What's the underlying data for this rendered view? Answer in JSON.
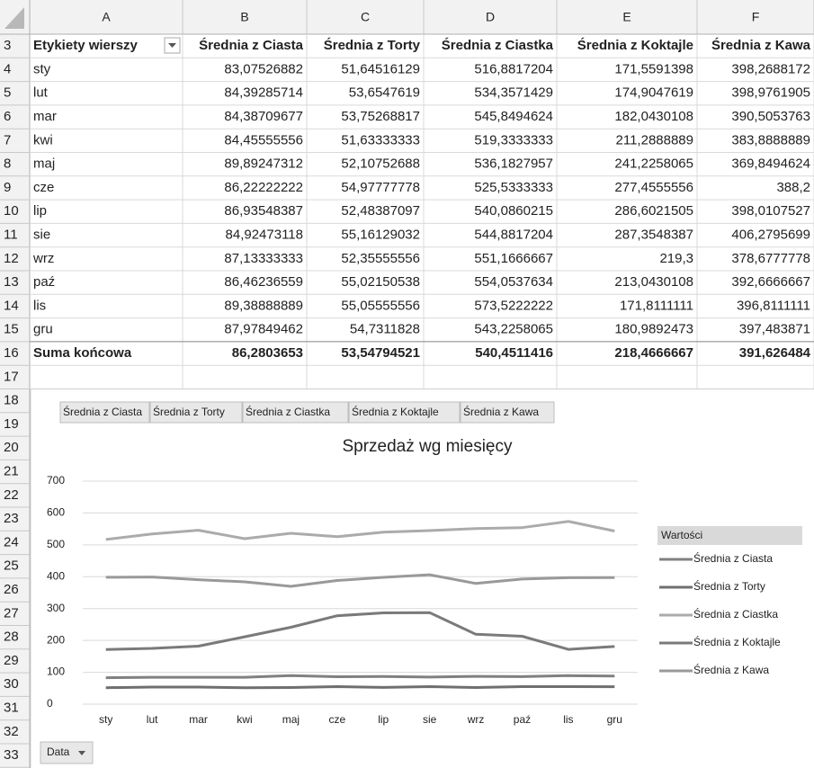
{
  "spreadsheet": {
    "columns": [
      "A",
      "B",
      "C",
      "D",
      "E",
      "F"
    ],
    "row_numbers": [
      3,
      4,
      5,
      6,
      7,
      8,
      9,
      10,
      11,
      12,
      13,
      14,
      15,
      16,
      17,
      18,
      19,
      20,
      21,
      22,
      23,
      24,
      25,
      26,
      27,
      28,
      29,
      30,
      31,
      32,
      33
    ],
    "table": {
      "row_label_header": "Etykiety wierszy",
      "rows": [
        [
          "83,07526882",
          "51,64516129",
          "516,8817204",
          "171,5591398",
          "398,2688172"
        ],
        [
          "84,39285714",
          "53,6547619",
          "534,3571429",
          "174,9047619",
          "398,9761905"
        ],
        [
          "84,38709677",
          "53,75268817",
          "545,8494624",
          "182,0430108",
          "390,5053763"
        ],
        [
          "84,45555556",
          "51,63333333",
          "519,3333333",
          "211,2888889",
          "383,8888889"
        ],
        [
          "89,89247312",
          "52,10752688",
          "536,1827957",
          "241,2258065",
          "369,8494624"
        ],
        [
          "86,22222222",
          "54,97777778",
          "525,5333333",
          "277,4555556",
          "388,2"
        ],
        [
          "86,93548387",
          "52,48387097",
          "540,0860215",
          "286,6021505",
          "398,0107527"
        ],
        [
          "84,92473118",
          "55,16129032",
          "544,8817204",
          "287,3548387",
          "406,2795699"
        ],
        [
          "87,13333333",
          "52,35555556",
          "551,1666667",
          "219,3",
          "378,6777778"
        ],
        [
          "86,46236559",
          "55,02150538",
          "554,0537634",
          "213,0430108",
          "392,6666667"
        ],
        [
          "89,38888889",
          "55,05555556",
          "573,5222222",
          "171,8111111",
          "396,8111111"
        ],
        [
          "87,97849462",
          "54,7311828",
          "543,2258065",
          "180,9892473",
          "397,483871"
        ]
      ],
      "total_label": "Suma końcowa",
      "total": [
        "86,2803653",
        "53,54794521",
        "540,4511416",
        "218,4666667",
        "391,626484"
      ]
    }
  },
  "chart_data": {
    "type": "line",
    "title": "Sprzedaż wg miesięcy",
    "categories": [
      "sty",
      "lut",
      "mar",
      "kwi",
      "maj",
      "cze",
      "lip",
      "sie",
      "wrz",
      "paź",
      "lis",
      "gru"
    ],
    "series": [
      {
        "name": "Średnia z Ciasta",
        "color": "#808080",
        "values": [
          83.07526882,
          84.39285714,
          84.38709677,
          84.45555556,
          89.89247312,
          86.22222222,
          86.93548387,
          84.92473118,
          87.13333333,
          86.46236559,
          89.38888889,
          87.97849462
        ]
      },
      {
        "name": "Średnia z Torty",
        "color": "#6f6f6f",
        "values": [
          51.64516129,
          53.6547619,
          53.75268817,
          51.63333333,
          52.10752688,
          54.97777778,
          52.48387097,
          55.16129032,
          52.35555556,
          55.02150538,
          55.05555556,
          54.7311828
        ]
      },
      {
        "name": "Średnia z Ciastka",
        "color": "#ababab",
        "values": [
          516.8817204,
          534.3571429,
          545.8494624,
          519.3333333,
          536.1827957,
          525.5333333,
          540.0860215,
          544.8817204,
          551.1666667,
          554.0537634,
          573.5222222,
          543.2258065
        ]
      },
      {
        "name": "Średnia z Koktajle",
        "color": "#7a7a7a",
        "values": [
          171.5591398,
          174.9047619,
          182.0430108,
          211.2888889,
          241.2258065,
          277.4555556,
          286.6021505,
          287.3548387,
          219.3,
          213.0430108,
          171.8111111,
          180.9892473
        ]
      },
      {
        "name": "Średnia z Kawa",
        "color": "#999999",
        "values": [
          398.2688172,
          398.9761905,
          390.5053763,
          383.8888889,
          369.8494624,
          388.2,
          398.0107527,
          406.2795699,
          378.6777778,
          392.6666667,
          396.8111111,
          397.483871
        ]
      }
    ],
    "ylim": [
      0,
      700
    ],
    "yticks": [
      0,
      100,
      200,
      300,
      400,
      500,
      600,
      700
    ],
    "grid": true,
    "legend": "right",
    "legend_title": "Wartości",
    "category_field_button": "Data"
  }
}
